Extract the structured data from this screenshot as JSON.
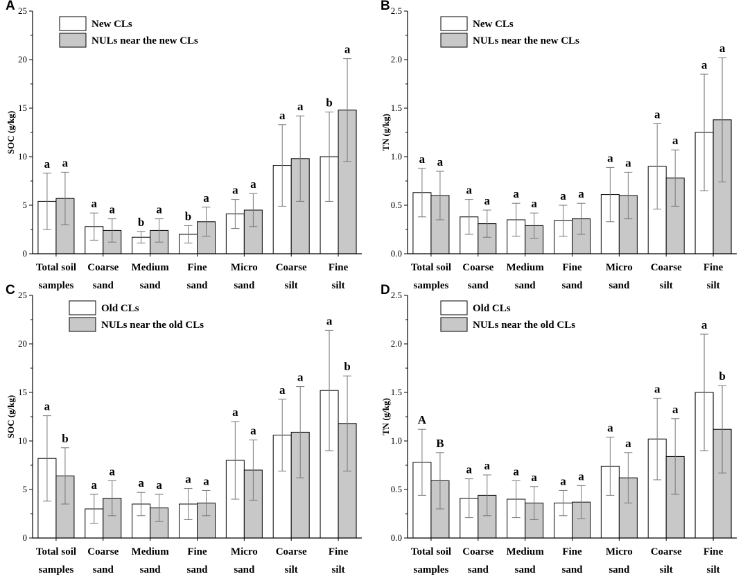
{
  "colors": {
    "new_or_old": "#ffffff",
    "nul": "#c8c8c8",
    "axis": "#000000",
    "errorbar": "#777777"
  },
  "chart_data": [
    {
      "panel": "A",
      "type": "bar",
      "ylabel": "SOC (g/kg)",
      "ylim": [
        0,
        25
      ],
      "yticks": [
        0,
        5,
        10,
        15,
        20,
        25
      ],
      "categories": [
        [
          "Total soil",
          "samples"
        ],
        [
          "Coarse",
          "sand"
        ],
        [
          "Medium",
          "sand"
        ],
        [
          "Fine",
          "sand"
        ],
        [
          "Micro",
          "sand"
        ],
        [
          "Coarse",
          "silt"
        ],
        [
          "Fine",
          "silt"
        ]
      ],
      "legend": [
        "New CLs",
        "NULs near the new CLs"
      ],
      "series": [
        {
          "name": "New CLs",
          "values": [
            5.4,
            2.8,
            1.7,
            2.0,
            4.1,
            9.1,
            10.0
          ],
          "errors": [
            2.9,
            1.4,
            0.6,
            0.9,
            1.5,
            4.2,
            4.6
          ],
          "labels": [
            "a",
            "a",
            "b",
            "b",
            "a",
            "a",
            "b"
          ]
        },
        {
          "name": "NULs near the new CLs",
          "values": [
            5.7,
            2.4,
            2.4,
            3.3,
            4.5,
            9.8,
            14.8
          ],
          "errors": [
            2.7,
            1.2,
            1.2,
            1.5,
            1.7,
            4.4,
            5.3
          ],
          "labels": [
            "a",
            "a",
            "a",
            "a",
            "a",
            "a",
            "a"
          ]
        }
      ]
    },
    {
      "panel": "B",
      "type": "bar",
      "ylabel": "TN (g/kg)",
      "ylim": [
        0,
        2.5
      ],
      "yticks": [
        "0.0",
        "0.5",
        "1.0",
        "1.5",
        "2.0",
        "2.5"
      ],
      "categories": [
        [
          "Total soil",
          "samples"
        ],
        [
          "Coarse",
          "sand"
        ],
        [
          "Medium",
          "sand"
        ],
        [
          "Fine",
          "sand"
        ],
        [
          "Micro",
          "sand"
        ],
        [
          "Coarse",
          "silt"
        ],
        [
          "Fine",
          "silt"
        ]
      ],
      "legend": [
        "New CLs",
        "NULs near the new CLs"
      ],
      "series": [
        {
          "name": "New CLs",
          "values": [
            0.63,
            0.38,
            0.35,
            0.34,
            0.61,
            0.9,
            1.25
          ],
          "errors": [
            0.25,
            0.18,
            0.17,
            0.16,
            0.28,
            0.44,
            0.6
          ],
          "labels": [
            "a",
            "a",
            "a",
            "a",
            "a",
            "a",
            "a"
          ]
        },
        {
          "name": "NULs near the new CLs",
          "values": [
            0.6,
            0.31,
            0.29,
            0.36,
            0.6,
            0.78,
            1.38
          ],
          "errors": [
            0.25,
            0.14,
            0.13,
            0.16,
            0.24,
            0.29,
            0.64
          ],
          "labels": [
            "a",
            "a",
            "a",
            "a",
            "a",
            "a",
            "a"
          ]
        }
      ]
    },
    {
      "panel": "C",
      "type": "bar",
      "ylabel": "SOC (g/kg)",
      "ylim": [
        0,
        25
      ],
      "yticks": [
        0,
        5,
        10,
        15,
        20,
        25
      ],
      "categories": [
        [
          "Total soil",
          "samples"
        ],
        [
          "Coarse",
          "sand"
        ],
        [
          "Medium",
          "sand"
        ],
        [
          "Fine",
          "sand"
        ],
        [
          "Micro",
          "sand"
        ],
        [
          "Coarse",
          "silt"
        ],
        [
          "Fine",
          "silt"
        ]
      ],
      "legend": [
        "Old CLs",
        "NULs near the old CLs"
      ],
      "series": [
        {
          "name": "Old CLs",
          "values": [
            8.2,
            3.0,
            3.5,
            3.5,
            8.0,
            10.6,
            15.2
          ],
          "errors": [
            4.4,
            1.5,
            1.2,
            1.6,
            4.0,
            3.7,
            6.2
          ],
          "labels": [
            "a",
            "a",
            "a",
            "a",
            "a",
            "a",
            "a"
          ]
        },
        {
          "name": "NULs near the old CLs",
          "values": [
            6.4,
            4.1,
            3.1,
            3.6,
            7.0,
            10.9,
            11.8
          ],
          "errors": [
            2.9,
            1.8,
            1.4,
            1.3,
            3.1,
            4.7,
            4.9
          ],
          "labels": [
            "b",
            "a",
            "a",
            "a",
            "a",
            "a",
            "b"
          ]
        }
      ]
    },
    {
      "panel": "D",
      "type": "bar",
      "ylabel": "TN (g/kg)",
      "ylim": [
        0,
        2.5
      ],
      "yticks": [
        "0.0",
        "0.5",
        "1.0",
        "1.5",
        "2.0",
        "2.5"
      ],
      "categories": [
        [
          "Total soil",
          "samples"
        ],
        [
          "Coarse",
          "sand"
        ],
        [
          "Medium",
          "sand"
        ],
        [
          "Fine",
          "sand"
        ],
        [
          "Micro",
          "sand"
        ],
        [
          "Coarse",
          "silt"
        ],
        [
          "Fine",
          "silt"
        ]
      ],
      "legend": [
        "Old CLs",
        "NULs near the old CLs"
      ],
      "series": [
        {
          "name": "Old CLs",
          "values": [
            0.78,
            0.41,
            0.4,
            0.36,
            0.74,
            1.02,
            1.5
          ],
          "errors": [
            0.34,
            0.2,
            0.19,
            0.13,
            0.3,
            0.42,
            0.6
          ],
          "labels": [
            "A",
            "a",
            "a",
            "a",
            "a",
            "a",
            "a"
          ]
        },
        {
          "name": "NULs near the old CLs",
          "values": [
            0.59,
            0.44,
            0.36,
            0.37,
            0.62,
            0.84,
            1.12
          ],
          "errors": [
            0.29,
            0.21,
            0.17,
            0.17,
            0.26,
            0.39,
            0.45
          ],
          "labels": [
            "B",
            "a",
            "a",
            "a",
            "a",
            "a",
            "b"
          ]
        }
      ]
    }
  ]
}
